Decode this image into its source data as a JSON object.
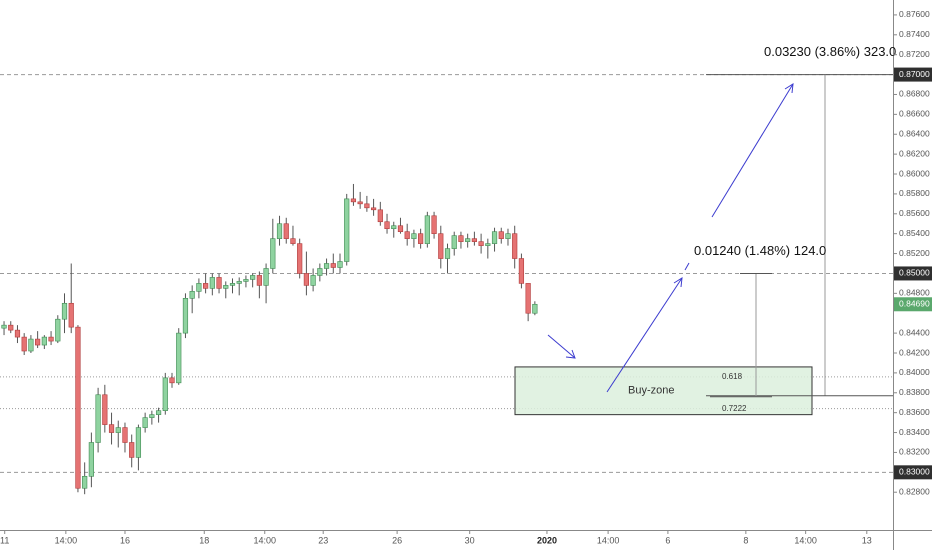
{
  "chart_data": {
    "type": "candlestick",
    "up_color": "#8fd3a0",
    "down_color": "#e57373",
    "wick_color": "#555555",
    "ylim": [
      0.8242,
      0.8775
    ],
    "yticks": [
      {
        "value": 0.828,
        "label": "0.82800"
      },
      {
        "value": 0.83,
        "label": "0.83000"
      },
      {
        "value": 0.832,
        "label": "0.83200"
      },
      {
        "value": 0.834,
        "label": "0.83400"
      },
      {
        "value": 0.836,
        "label": "0.83600"
      },
      {
        "value": 0.838,
        "label": "0.83800"
      },
      {
        "value": 0.84,
        "label": "0.84000"
      },
      {
        "value": 0.842,
        "label": "0.84200"
      },
      {
        "value": 0.844,
        "label": "0.84400"
      },
      {
        "value": 0.848,
        "label": "0.84800"
      },
      {
        "value": 0.85,
        "label": "0.85000"
      },
      {
        "value": 0.852,
        "label": "0.85200"
      },
      {
        "value": 0.854,
        "label": "0.85400"
      },
      {
        "value": 0.856,
        "label": "0.85600"
      },
      {
        "value": 0.858,
        "label": "0.85800"
      },
      {
        "value": 0.86,
        "label": "0.86000"
      },
      {
        "value": 0.862,
        "label": "0.86200"
      },
      {
        "value": 0.864,
        "label": "0.86400"
      },
      {
        "value": 0.866,
        "label": "0.86600"
      },
      {
        "value": 0.868,
        "label": "0.86800"
      },
      {
        "value": 0.87,
        "label": "0.87000"
      },
      {
        "value": 0.872,
        "label": "0.87200"
      },
      {
        "value": 0.874,
        "label": "0.87400"
      },
      {
        "value": 0.876,
        "label": "0.87600"
      }
    ],
    "xlim": [
      -0.6,
      132.3
    ],
    "xticks": [
      {
        "value": 0.1,
        "label": "11"
      },
      {
        "value": 9.2,
        "label": "14:00"
      },
      {
        "value": 18,
        "label": "16"
      },
      {
        "value": 29.8,
        "label": "18"
      },
      {
        "value": 38.8,
        "label": "14:00"
      },
      {
        "value": 47.5,
        "label": "23"
      },
      {
        "value": 58.5,
        "label": "26"
      },
      {
        "value": 69.3,
        "label": "30"
      },
      {
        "value": 80.8,
        "label": "2020"
      },
      {
        "value": 89.9,
        "label": "14:00"
      },
      {
        "value": 98.8,
        "label": "6"
      },
      {
        "value": 110.4,
        "label": "8"
      },
      {
        "value": 119.3,
        "label": "14:00"
      },
      {
        "value": 128.4,
        "label": "13"
      }
    ],
    "reference_lines": [
      0.87,
      0.85,
      0.83
    ],
    "last_price": {
      "value": 0.8469,
      "label": "0.84690"
    },
    "fib_levels": [
      {
        "value": 0.8396,
        "label": "0.618"
      },
      {
        "value": 0.8364,
        "label": "0.7222"
      }
    ],
    "buy_zone": {
      "label": "Buy-zone",
      "range": [
        0.8358,
        0.8406
      ]
    },
    "measurements": [
      {
        "label": "0.03230 (3.86%) 323.0",
        "from": 0.8377,
        "to": 0.87
      },
      {
        "label": "0.01240 (1.48%) 124.0",
        "from": 0.8376,
        "to": 0.85
      }
    ],
    "open": [
      0.8445,
      0.8448,
      0.8443,
      0.8436,
      0.8422,
      0.8434,
      0.8428,
      0.8436,
      0.8432,
      0.8454,
      0.847,
      0.8446,
      0.8284,
      0.8296,
      0.833,
      0.8378,
      0.8348,
      0.834,
      0.8345,
      0.833,
      0.8315,
      0.8345,
      0.8355,
      0.8358,
      0.8362,
      0.8395,
      0.839,
      0.844,
      0.8475,
      0.8482,
      0.849,
      0.8485,
      0.8496,
      0.8485,
      0.8488,
      0.849,
      0.8492,
      0.8494,
      0.8498,
      0.8488,
      0.8505,
      0.8535,
      0.855,
      0.8535,
      0.853,
      0.85,
      0.8488,
      0.8498,
      0.8505,
      0.851,
      0.8506,
      0.8512,
      0.8575,
      0.8572,
      0.857,
      0.8566,
      0.8564,
      0.8552,
      0.8545,
      0.8548,
      0.8542,
      0.8535,
      0.854,
      0.853,
      0.8558,
      0.854,
      0.8515,
      0.8525,
      0.8538,
      0.8532,
      0.8535,
      0.8532,
      0.8528,
      0.853,
      0.8542,
      0.8535,
      0.854,
      0.8515,
      0.849,
      0.846
    ],
    "high": [
      0.8452,
      0.8452,
      0.8448,
      0.844,
      0.8438,
      0.8442,
      0.8438,
      0.8442,
      0.8458,
      0.848,
      0.851,
      0.8448,
      0.831,
      0.834,
      0.8385,
      0.8388,
      0.836,
      0.8352,
      0.835,
      0.8338,
      0.8348,
      0.836,
      0.8362,
      0.8365,
      0.84,
      0.84,
      0.8445,
      0.848,
      0.8488,
      0.8495,
      0.85,
      0.85,
      0.85,
      0.8492,
      0.8495,
      0.8496,
      0.8498,
      0.85,
      0.8502,
      0.851,
      0.8555,
      0.8558,
      0.8556,
      0.8548,
      0.8535,
      0.8522,
      0.8505,
      0.851,
      0.8515,
      0.852,
      0.852,
      0.858,
      0.859,
      0.8582,
      0.8578,
      0.8575,
      0.8572,
      0.856,
      0.8552,
      0.8556,
      0.855,
      0.8544,
      0.8545,
      0.8562,
      0.8562,
      0.8548,
      0.853,
      0.8542,
      0.8542,
      0.854,
      0.8542,
      0.854,
      0.8535,
      0.8546,
      0.8546,
      0.8545,
      0.8548,
      0.852,
      0.849,
      0.8472
    ],
    "low": [
      0.8438,
      0.844,
      0.843,
      0.8418,
      0.842,
      0.8425,
      0.8424,
      0.8428,
      0.843,
      0.844,
      0.844,
      0.828,
      0.8278,
      0.8285,
      0.832,
      0.834,
      0.8328,
      0.8325,
      0.832,
      0.8305,
      0.8302,
      0.834,
      0.8348,
      0.835,
      0.8358,
      0.8385,
      0.8388,
      0.8435,
      0.846,
      0.8475,
      0.848,
      0.8478,
      0.848,
      0.8475,
      0.848,
      0.8478,
      0.8486,
      0.8486,
      0.8475,
      0.847,
      0.85,
      0.8528,
      0.853,
      0.8528,
      0.8495,
      0.8478,
      0.8482,
      0.8492,
      0.8498,
      0.85,
      0.85,
      0.8508,
      0.8568,
      0.8565,
      0.8562,
      0.8558,
      0.8548,
      0.854,
      0.8536,
      0.854,
      0.8528,
      0.8526,
      0.8525,
      0.8526,
      0.8535,
      0.8505,
      0.85,
      0.8518,
      0.8525,
      0.8526,
      0.8528,
      0.852,
      0.8515,
      0.8522,
      0.853,
      0.8528,
      0.8505,
      0.8485,
      0.8452,
      0.8458
    ],
    "close": [
      0.8448,
      0.8443,
      0.8436,
      0.8422,
      0.8434,
      0.8428,
      0.8436,
      0.8432,
      0.8454,
      0.847,
      0.8446,
      0.8284,
      0.8296,
      0.833,
      0.8378,
      0.8348,
      0.834,
      0.8345,
      0.833,
      0.8315,
      0.8345,
      0.8355,
      0.8358,
      0.8362,
      0.8395,
      0.839,
      0.844,
      0.8475,
      0.8482,
      0.849,
      0.8485,
      0.8496,
      0.8485,
      0.8488,
      0.849,
      0.8492,
      0.8494,
      0.8498,
      0.8488,
      0.8505,
      0.8535,
      0.855,
      0.8535,
      0.853,
      0.85,
      0.8488,
      0.8498,
      0.8505,
      0.851,
      0.8506,
      0.8512,
      0.8575,
      0.8572,
      0.857,
      0.8566,
      0.8564,
      0.8552,
      0.8545,
      0.8548,
      0.8542,
      0.8535,
      0.854,
      0.853,
      0.8558,
      0.854,
      0.8515,
      0.8525,
      0.8538,
      0.8532,
      0.8535,
      0.8532,
      0.8528,
      0.853,
      0.8542,
      0.8535,
      0.854,
      0.8515,
      0.849,
      0.846,
      0.8469
    ]
  }
}
